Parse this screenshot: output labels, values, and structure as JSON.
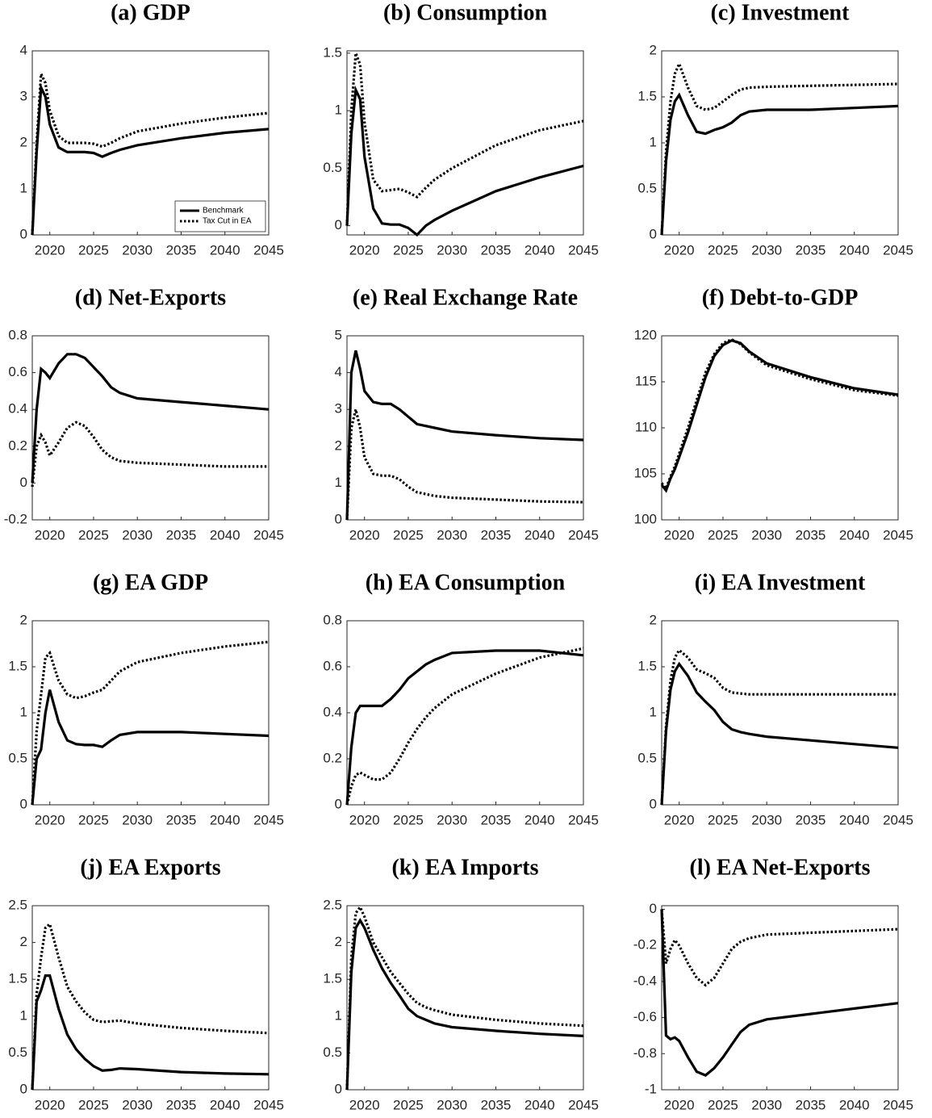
{
  "chart_data": [
    {
      "type": "line",
      "title": "(a) GDP",
      "x": [
        2018,
        2018.5,
        2019,
        2019.5,
        2020,
        2021,
        2022,
        2023,
        2024,
        2025,
        2026,
        2027,
        2028,
        2030,
        2035,
        2040,
        2045
      ],
      "xlim": [
        2018,
        2045
      ],
      "xticks": [
        2020,
        2025,
        2030,
        2035,
        2040,
        2045
      ],
      "ylim": [
        0,
        4
      ],
      "yticks": [
        0,
        1,
        2,
        3,
        4
      ],
      "legend": "lower right",
      "series": [
        {
          "name": "Benchmark",
          "color": "#000000",
          "line_style": "solid",
          "values": [
            0,
            1.8,
            3.2,
            3.0,
            2.4,
            1.9,
            1.8,
            1.8,
            1.8,
            1.78,
            1.7,
            1.78,
            1.85,
            1.95,
            2.1,
            2.22,
            2.3
          ]
        },
        {
          "name": "Tax Cut in EA",
          "color": "#000000",
          "line_style": "dotted",
          "values": [
            0,
            2.0,
            3.5,
            3.3,
            2.7,
            2.15,
            2.0,
            2.0,
            2.0,
            1.98,
            1.92,
            2.0,
            2.1,
            2.25,
            2.42,
            2.55,
            2.65
          ]
        }
      ]
    },
    {
      "type": "line",
      "title": "(b) Consumption",
      "x": [
        2018,
        2018.5,
        2019,
        2019.5,
        2020,
        2021,
        2022,
        2023,
        2024,
        2025,
        2026,
        2027,
        2028,
        2030,
        2035,
        2040,
        2045
      ],
      "xlim": [
        2018,
        2045
      ],
      "xticks": [
        2020,
        2025,
        2030,
        2035,
        2040,
        2045
      ],
      "ylim": [
        -0.08,
        1.52
      ],
      "yticks": [
        0,
        0.5,
        1,
        1.5
      ],
      "series": [
        {
          "color": "#000000",
          "line_style": "solid",
          "values": [
            0,
            0.8,
            1.18,
            1.1,
            0.6,
            0.15,
            0.02,
            0.01,
            0.01,
            -0.02,
            -0.08,
            0.0,
            0.05,
            0.13,
            0.3,
            0.42,
            0.52
          ]
        },
        {
          "color": "#000000",
          "line_style": "dotted",
          "values": [
            0,
            1.0,
            1.5,
            1.4,
            0.9,
            0.4,
            0.3,
            0.31,
            0.32,
            0.29,
            0.25,
            0.33,
            0.4,
            0.5,
            0.7,
            0.83,
            0.91
          ]
        }
      ]
    },
    {
      "type": "line",
      "title": "(c) Investment",
      "x": [
        2018,
        2018.5,
        2019,
        2019.5,
        2020,
        2021,
        2022,
        2023,
        2024,
        2025,
        2026,
        2027,
        2028,
        2030,
        2035,
        2040,
        2045
      ],
      "xlim": [
        2018,
        2045
      ],
      "xticks": [
        2020,
        2025,
        2030,
        2035,
        2040,
        2045
      ],
      "ylim": [
        0,
        2
      ],
      "yticks": [
        0,
        0.5,
        1,
        1.5,
        2
      ],
      "series": [
        {
          "color": "#000000",
          "line_style": "solid",
          "values": [
            0,
            0.8,
            1.25,
            1.45,
            1.52,
            1.3,
            1.12,
            1.1,
            1.14,
            1.17,
            1.22,
            1.3,
            1.34,
            1.36,
            1.36,
            1.38,
            1.4
          ]
        },
        {
          "color": "#000000",
          "line_style": "dotted",
          "values": [
            0,
            0.9,
            1.45,
            1.75,
            1.86,
            1.6,
            1.4,
            1.36,
            1.38,
            1.45,
            1.52,
            1.58,
            1.6,
            1.61,
            1.62,
            1.63,
            1.64
          ]
        }
      ]
    },
    {
      "type": "line",
      "title": "(d) Net-Exports",
      "x": [
        2018,
        2018.5,
        2019,
        2019.5,
        2020,
        2021,
        2022,
        2023,
        2024,
        2025,
        2026,
        2027,
        2028,
        2030,
        2035,
        2040,
        2045
      ],
      "xlim": [
        2018,
        2045
      ],
      "xticks": [
        2020,
        2025,
        2030,
        2035,
        2040,
        2045
      ],
      "ylim": [
        -0.2,
        0.8
      ],
      "yticks": [
        -0.2,
        0,
        0.2,
        0.4,
        0.6,
        0.8
      ],
      "series": [
        {
          "color": "#000000",
          "line_style": "solid",
          "values": [
            0,
            0.4,
            0.62,
            0.6,
            0.57,
            0.65,
            0.7,
            0.7,
            0.68,
            0.63,
            0.58,
            0.52,
            0.49,
            0.46,
            0.44,
            0.42,
            0.4
          ]
        },
        {
          "color": "#000000",
          "line_style": "dotted",
          "values": [
            -0.02,
            0.2,
            0.26,
            0.22,
            0.15,
            0.22,
            0.3,
            0.33,
            0.31,
            0.25,
            0.18,
            0.14,
            0.12,
            0.11,
            0.1,
            0.09,
            0.09
          ]
        }
      ]
    },
    {
      "type": "line",
      "title": "(e) Real Exchange Rate",
      "x": [
        2018,
        2018.5,
        2019,
        2019.5,
        2020,
        2021,
        2022,
        2023,
        2024,
        2025,
        2026,
        2027,
        2028,
        2030,
        2035,
        2040,
        2045
      ],
      "xlim": [
        2018,
        2045
      ],
      "xticks": [
        2020,
        2025,
        2030,
        2035,
        2040,
        2045
      ],
      "ylim": [
        0,
        5
      ],
      "yticks": [
        0,
        1,
        2,
        3,
        4,
        5
      ],
      "series": [
        {
          "color": "#000000",
          "line_style": "solid",
          "values": [
            0,
            4.0,
            4.6,
            4.1,
            3.5,
            3.2,
            3.15,
            3.15,
            3.0,
            2.8,
            2.6,
            2.55,
            2.5,
            2.4,
            2.3,
            2.22,
            2.17
          ]
        },
        {
          "color": "#000000",
          "line_style": "dotted",
          "values": [
            0,
            2.5,
            3.0,
            2.5,
            1.7,
            1.25,
            1.2,
            1.2,
            1.1,
            0.9,
            0.75,
            0.7,
            0.65,
            0.6,
            0.55,
            0.5,
            0.48
          ]
        }
      ]
    },
    {
      "type": "line",
      "title": "(f) Debt-to-GDP",
      "x": [
        2018,
        2018.5,
        2019,
        2019.5,
        2020,
        2021,
        2022,
        2023,
        2024,
        2025,
        2026,
        2027,
        2028,
        2030,
        2035,
        2040,
        2045
      ],
      "xlim": [
        2018,
        2045
      ],
      "xticks": [
        2020,
        2025,
        2030,
        2035,
        2040,
        2045
      ],
      "ylim": [
        100,
        120
      ],
      "yticks": [
        100,
        105,
        110,
        115,
        120
      ],
      "series": [
        {
          "color": "#000000",
          "line_style": "solid",
          "values": [
            103.8,
            103.2,
            104.5,
            105.5,
            106.8,
            109.5,
            112.5,
            115.5,
            117.8,
            119,
            119.5,
            119.2,
            118.3,
            117,
            115.5,
            114.3,
            113.6
          ]
        },
        {
          "color": "#000000",
          "line_style": "dotted",
          "values": [
            104,
            103.4,
            104.7,
            105.8,
            107.2,
            110,
            113,
            116,
            118,
            119.2,
            119.6,
            119.1,
            118.2,
            116.8,
            115.3,
            114.1,
            113.5
          ]
        }
      ]
    },
    {
      "type": "line",
      "title": "(g) EA GDP",
      "x": [
        2018,
        2018.5,
        2019,
        2019.5,
        2020,
        2021,
        2022,
        2023,
        2024,
        2025,
        2026,
        2027,
        2028,
        2030,
        2035,
        2040,
        2045
      ],
      "xlim": [
        2018,
        2045
      ],
      "xticks": [
        2020,
        2025,
        2030,
        2035,
        2040,
        2045
      ],
      "ylim": [
        0,
        2
      ],
      "yticks": [
        0,
        0.5,
        1,
        1.5,
        2
      ],
      "series": [
        {
          "color": "#000000",
          "line_style": "solid",
          "values": [
            0,
            0.5,
            0.6,
            1.0,
            1.25,
            0.9,
            0.7,
            0.66,
            0.65,
            0.65,
            0.63,
            0.7,
            0.76,
            0.79,
            0.79,
            0.77,
            0.75
          ]
        },
        {
          "color": "#000000",
          "line_style": "dotted",
          "values": [
            0,
            0.8,
            1.2,
            1.6,
            1.65,
            1.35,
            1.2,
            1.16,
            1.18,
            1.22,
            1.25,
            1.35,
            1.45,
            1.55,
            1.65,
            1.72,
            1.77
          ]
        }
      ]
    },
    {
      "type": "line",
      "title": "(h) EA Consumption",
      "x": [
        2018,
        2018.5,
        2019,
        2019.5,
        2020,
        2021,
        2022,
        2023,
        2024,
        2025,
        2026,
        2027,
        2028,
        2030,
        2035,
        2040,
        2045
      ],
      "xlim": [
        2018,
        2045
      ],
      "xticks": [
        2020,
        2025,
        2030,
        2035,
        2040,
        2045
      ],
      "ylim": [
        0,
        0.8
      ],
      "yticks": [
        0,
        0.2,
        0.4,
        0.6,
        0.8
      ],
      "series": [
        {
          "color": "#000000",
          "line_style": "solid",
          "values": [
            0,
            0.25,
            0.4,
            0.43,
            0.43,
            0.43,
            0.43,
            0.46,
            0.5,
            0.55,
            0.58,
            0.61,
            0.63,
            0.66,
            0.67,
            0.67,
            0.65
          ]
        },
        {
          "color": "#000000",
          "line_style": "dotted",
          "values": [
            0,
            0.08,
            0.13,
            0.14,
            0.13,
            0.11,
            0.11,
            0.14,
            0.2,
            0.27,
            0.33,
            0.38,
            0.42,
            0.48,
            0.57,
            0.64,
            0.68
          ]
        }
      ]
    },
    {
      "type": "line",
      "title": "(i) EA Investment",
      "x": [
        2018,
        2018.5,
        2019,
        2019.5,
        2020,
        2021,
        2022,
        2023,
        2024,
        2025,
        2026,
        2027,
        2028,
        2030,
        2035,
        2040,
        2045
      ],
      "xlim": [
        2018,
        2045
      ],
      "xticks": [
        2020,
        2025,
        2030,
        2035,
        2040,
        2045
      ],
      "ylim": [
        0,
        2
      ],
      "yticks": [
        0,
        0.5,
        1,
        1.5,
        2
      ],
      "series": [
        {
          "color": "#000000",
          "line_style": "solid",
          "values": [
            0,
            0.8,
            1.25,
            1.45,
            1.53,
            1.4,
            1.22,
            1.12,
            1.03,
            0.9,
            0.82,
            0.79,
            0.77,
            0.74,
            0.7,
            0.66,
            0.62
          ]
        },
        {
          "color": "#000000",
          "line_style": "dotted",
          "values": [
            0,
            0.85,
            1.35,
            1.6,
            1.68,
            1.6,
            1.47,
            1.43,
            1.38,
            1.27,
            1.22,
            1.21,
            1.2,
            1.2,
            1.2,
            1.2,
            1.2
          ]
        }
      ]
    },
    {
      "type": "line",
      "title": "(j) EA Exports",
      "x": [
        2018,
        2018.5,
        2019,
        2019.5,
        2020,
        2021,
        2022,
        2023,
        2024,
        2025,
        2026,
        2027,
        2028,
        2030,
        2035,
        2040,
        2045
      ],
      "xlim": [
        2018,
        2045
      ],
      "xticks": [
        2020,
        2025,
        2030,
        2035,
        2040,
        2045
      ],
      "ylim": [
        0,
        2.5
      ],
      "yticks": [
        0,
        0.5,
        1,
        1.5,
        2,
        2.5
      ],
      "series": [
        {
          "color": "#000000",
          "line_style": "solid",
          "values": [
            0,
            1.2,
            1.35,
            1.55,
            1.55,
            1.1,
            0.75,
            0.55,
            0.42,
            0.32,
            0.26,
            0.27,
            0.29,
            0.28,
            0.24,
            0.22,
            0.21
          ]
        },
        {
          "color": "#000000",
          "line_style": "dotted",
          "values": [
            0,
            1.3,
            1.8,
            2.2,
            2.25,
            1.8,
            1.4,
            1.2,
            1.05,
            0.95,
            0.92,
            0.93,
            0.94,
            0.9,
            0.84,
            0.8,
            0.77
          ]
        }
      ]
    },
    {
      "type": "line",
      "title": "(k) EA Imports",
      "x": [
        2018,
        2018.5,
        2019,
        2019.5,
        2020,
        2021,
        2022,
        2023,
        2024,
        2025,
        2026,
        2027,
        2028,
        2030,
        2035,
        2040,
        2045
      ],
      "xlim": [
        2018,
        2045
      ],
      "xticks": [
        2020,
        2025,
        2030,
        2035,
        2040,
        2045
      ],
      "ylim": [
        0,
        2.5
      ],
      "yticks": [
        0,
        0.5,
        1,
        1.5,
        2,
        2.5
      ],
      "series": [
        {
          "color": "#000000",
          "line_style": "solid",
          "values": [
            0,
            1.6,
            2.2,
            2.3,
            2.2,
            1.9,
            1.65,
            1.45,
            1.28,
            1.1,
            1.0,
            0.95,
            0.9,
            0.85,
            0.8,
            0.76,
            0.73
          ]
        },
        {
          "color": "#000000",
          "line_style": "dotted",
          "values": [
            0,
            1.8,
            2.4,
            2.48,
            2.35,
            2.0,
            1.8,
            1.6,
            1.45,
            1.3,
            1.18,
            1.12,
            1.08,
            1.02,
            0.95,
            0.9,
            0.87
          ]
        }
      ]
    },
    {
      "type": "line",
      "title": "(l) EA Net-Exports",
      "x": [
        2018,
        2018.5,
        2019,
        2019.5,
        2020,
        2021,
        2022,
        2023,
        2024,
        2025,
        2026,
        2027,
        2028,
        2030,
        2035,
        2040,
        2045
      ],
      "xlim": [
        2018,
        2045
      ],
      "xticks": [
        2020,
        2025,
        2030,
        2035,
        2040,
        2045
      ],
      "ylim": [
        -1,
        0.02
      ],
      "yticks": [
        -1,
        -0.8,
        -0.6,
        -0.4,
        -0.2,
        0
      ],
      "series": [
        {
          "color": "#000000",
          "line_style": "solid",
          "values": [
            0,
            -0.7,
            -0.72,
            -0.71,
            -0.73,
            -0.82,
            -0.9,
            -0.92,
            -0.88,
            -0.82,
            -0.75,
            -0.68,
            -0.64,
            -0.61,
            -0.58,
            -0.55,
            -0.52
          ]
        },
        {
          "color": "#000000",
          "line_style": "dotted",
          "values": [
            0,
            -0.3,
            -0.22,
            -0.17,
            -0.2,
            -0.3,
            -0.38,
            -0.42,
            -0.38,
            -0.3,
            -0.22,
            -0.18,
            -0.16,
            -0.14,
            -0.13,
            -0.12,
            -0.11
          ]
        }
      ]
    }
  ]
}
